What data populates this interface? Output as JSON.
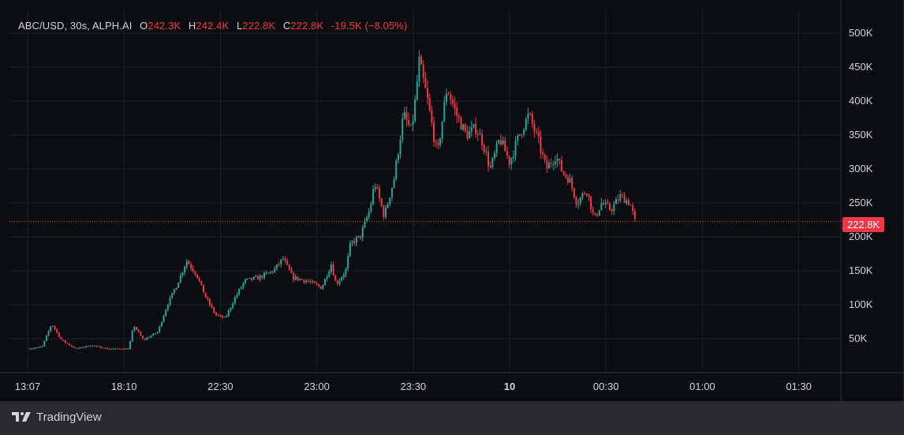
{
  "legend": {
    "symbol": "ABC/USD, 30s, ALPH.AI",
    "o_label": "O",
    "o_value": "242.3K",
    "h_label": "H",
    "h_value": "242.4K",
    "l_label": "L",
    "l_value": "222.8K",
    "c_label": "C",
    "c_value": "222.8K",
    "change": "-19.5K (−8.05%)"
  },
  "colors": {
    "background": "#0c0d10",
    "up": "#26a69a",
    "down": "#f23645",
    "grid": "#1c1f26",
    "text": "#d1d4dc"
  },
  "last_price_label": "222.8K",
  "footer": {
    "brand": "TradingView",
    "logo_icon": "tradingview-logo-icon"
  },
  "chart_data": {
    "type": "candlestick",
    "title": "",
    "xlabel": "",
    "ylabel": "",
    "ylim": [
      0,
      500000
    ],
    "y_ticks": [
      {
        "value": 50000,
        "label": "50K"
      },
      {
        "value": 100000,
        "label": "100K"
      },
      {
        "value": 150000,
        "label": "150K"
      },
      {
        "value": 200000,
        "label": "200K"
      },
      {
        "value": 250000,
        "label": "250K"
      },
      {
        "value": 300000,
        "label": "300K"
      },
      {
        "value": 350000,
        "label": "350K"
      },
      {
        "value": 400000,
        "label": "400K"
      },
      {
        "value": 450000,
        "label": "450K"
      },
      {
        "value": 500000,
        "label": "500K"
      }
    ],
    "x_ticks": [
      {
        "index": 0,
        "label": "13:07",
        "bold": false
      },
      {
        "index": 1,
        "label": "18:10",
        "bold": false
      },
      {
        "index": 2,
        "label": "22:30",
        "bold": false
      },
      {
        "index": 3,
        "label": "23:00",
        "bold": false
      },
      {
        "index": 4,
        "label": "23:30",
        "bold": false
      },
      {
        "index": 5,
        "label": "10",
        "bold": true
      },
      {
        "index": 6,
        "label": "00:30",
        "bold": false
      },
      {
        "index": 7,
        "label": "01:00",
        "bold": false
      },
      {
        "index": 8,
        "label": "01:30",
        "bold": false
      }
    ],
    "x_range": [
      0,
      8.7
    ],
    "last_price": 222800,
    "grid": true,
    "close_path": [
      [
        0.0,
        35000
      ],
      [
        0.15,
        38000
      ],
      [
        0.25,
        72000
      ],
      [
        0.35,
        48000
      ],
      [
        0.5,
        35000
      ],
      [
        0.65,
        40000
      ],
      [
        0.85,
        35000
      ],
      [
        1.05,
        35000
      ],
      [
        1.1,
        70000
      ],
      [
        1.2,
        48000
      ],
      [
        1.35,
        60000
      ],
      [
        1.45,
        100000
      ],
      [
        1.55,
        130000
      ],
      [
        1.65,
        165000
      ],
      [
        1.75,
        145000
      ],
      [
        1.85,
        110000
      ],
      [
        1.95,
        85000
      ],
      [
        2.05,
        80000
      ],
      [
        2.15,
        110000
      ],
      [
        2.25,
        135000
      ],
      [
        2.4,
        140000
      ],
      [
        2.55,
        150000
      ],
      [
        2.65,
        168000
      ],
      [
        2.75,
        140000
      ],
      [
        2.9,
        135000
      ],
      [
        3.05,
        125000
      ],
      [
        3.15,
        160000
      ],
      [
        3.2,
        130000
      ],
      [
        3.3,
        150000
      ],
      [
        3.35,
        190000
      ],
      [
        3.45,
        200000
      ],
      [
        3.55,
        240000
      ],
      [
        3.6,
        280000
      ],
      [
        3.7,
        230000
      ],
      [
        3.8,
        285000
      ],
      [
        3.9,
        380000
      ],
      [
        3.98,
        355000
      ],
      [
        4.03,
        410000
      ],
      [
        4.06,
        460000
      ],
      [
        4.15,
        400000
      ],
      [
        4.25,
        320000
      ],
      [
        4.35,
        420000
      ],
      [
        4.45,
        380000
      ],
      [
        4.55,
        350000
      ],
      [
        4.65,
        360000
      ],
      [
        4.72,
        340000
      ],
      [
        4.8,
        300000
      ],
      [
        4.9,
        345000
      ],
      [
        5.0,
        310000
      ],
      [
        5.1,
        350000
      ],
      [
        5.2,
        380000
      ],
      [
        5.3,
        340000
      ],
      [
        5.38,
        300000
      ],
      [
        5.48,
        320000
      ],
      [
        5.55,
        295000
      ],
      [
        5.62,
        285000
      ],
      [
        5.7,
        250000
      ],
      [
        5.8,
        270000
      ],
      [
        5.88,
        225000
      ],
      [
        5.95,
        250000
      ],
      [
        6.05,
        240000
      ],
      [
        6.15,
        260000
      ],
      [
        6.25,
        250000
      ],
      [
        6.3,
        222800
      ]
    ]
  }
}
